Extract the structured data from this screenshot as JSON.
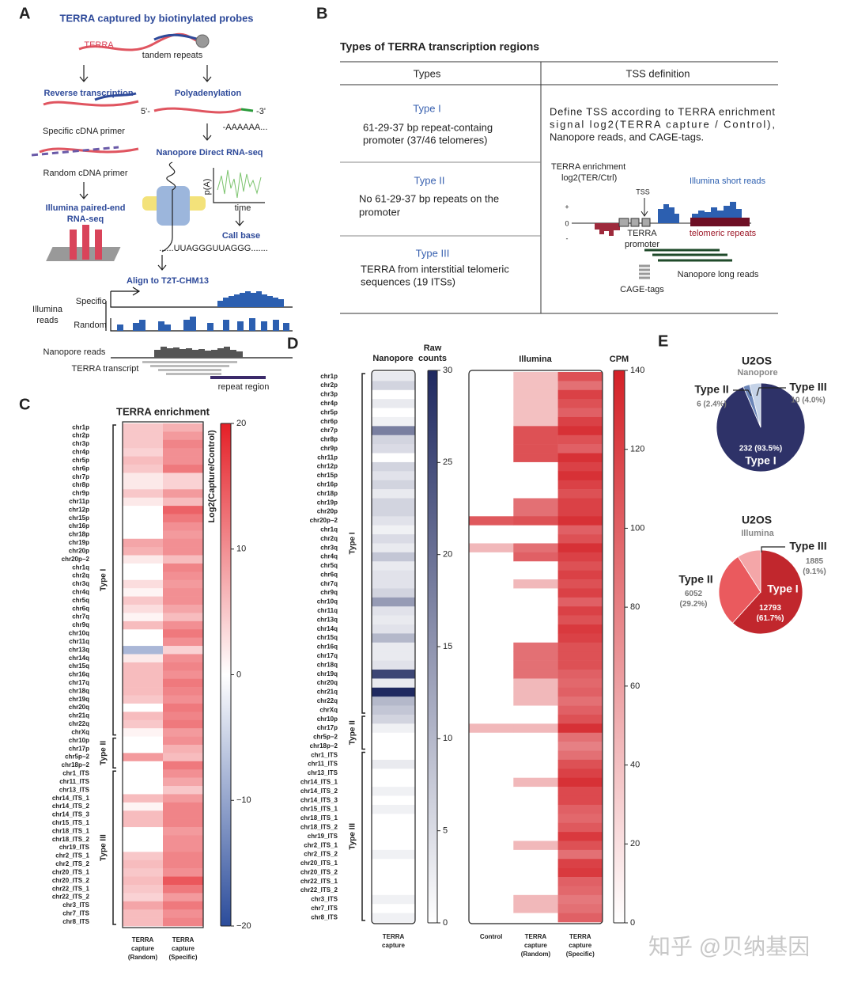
{
  "panel_labels": [
    "A",
    "B",
    "C",
    "D",
    "E"
  ],
  "panel_a": {
    "title": "TERRA captured by biotinylated probes",
    "terra": "TERRA",
    "tandem": "tandem repeats",
    "rt": "Reverse transcription",
    "polya": "Polyadenylation",
    "five": "5'-",
    "three": "-3'",
    "specific_primer": "Specific cDNA primer",
    "polya_tail": "-AAAAAA...",
    "random_primer": "Random cDNA primer",
    "nanopore_seq": "Nanopore Direct RNA-seq",
    "pa": "p(A)",
    "time": "time",
    "illumina_seq": [
      "Illumina paired-end",
      "RNA-seq"
    ],
    "call_base": "Call base",
    "sequence": "......UUAGGGUUAGGG.......",
    "align": "Align to T2T-CHM13",
    "specific": "Specific",
    "illumina_reads": [
      "Illumina",
      "reads"
    ],
    "random": "Random",
    "nanopore_reads": "Nanopore reads",
    "terra_transcript": "TERRA transcript",
    "repeat_region": "repeat region"
  },
  "panel_b": {
    "title": "Types of TERRA transcription regions",
    "table": {
      "header": [
        "Types",
        "TSS definition"
      ],
      "rows": [
        {
          "type": "Type I",
          "description": [
            "61-29-37 bp repeat-containg",
            "promoter (37/46 telomeres)"
          ]
        },
        {
          "type": "Type II",
          "description": [
            "No 61-29-37 bp repeats on the",
            "promoter"
          ]
        },
        {
          "type": "Type III",
          "description": [
            "TERRA from interstitial telomeric",
            "sequences (19 ITSs)"
          ]
        }
      ],
      "tss_definition": [
        "Define TSS according to TERRA enrichment",
        "signal log2(TERRA capture / Control),",
        "Nanopore reads, and CAGE-tags."
      ]
    },
    "diagram": {
      "enrichment": [
        "TERRA enrichment",
        "log2(TER/Ctrl)"
      ],
      "tss": "TSS",
      "short_reads": "Illumina short reads",
      "plus": "+",
      "zero": "0",
      "minus": "-",
      "promoter": [
        "TERRA",
        "promoter"
      ],
      "telomeric": "telomeric repeats",
      "long_reads": "Nanopore long reads",
      "cage": "CAGE-tags"
    }
  },
  "chart_data": [
    {
      "type": "heatmap",
      "title": "TERRA enrichment",
      "colorbar_label": "Log2(Capture/Control)",
      "categories": [
        "chr1p",
        "chr2p",
        "chr3p",
        "chr4p",
        "chr5p",
        "chr6p",
        "chr7p",
        "chr8p",
        "chr9p",
        "chr11p",
        "chr12p",
        "chr15p",
        "chr16p",
        "chr18p",
        "chr19p",
        "chr20p",
        "chr20p−2",
        "chr1q",
        "chr2q",
        "chr3q",
        "chr4q",
        "chr5q",
        "chr6q",
        "chr7q",
        "chr9q",
        "chr10q",
        "chr11q",
        "chr13q",
        "chr14q",
        "chr15q",
        "chr16q",
        "chr17q",
        "chr18q",
        "chr19q",
        "chr20q",
        "chr21q",
        "chr22q",
        "chrXq",
        "chr10p",
        "chr17p",
        "chr5p−2",
        "chr18p−2",
        "chr1_ITS",
        "chr11_ITS",
        "chr13_ITS",
        "chr14_ITS_1",
        "chr14_ITS_2",
        "chr14_ITS_3",
        "chr15_ITS_1",
        "chr18_ITS_1",
        "chr18_ITS_2",
        "chr19_ITS",
        "chr2_ITS_1",
        "chr2_ITS_2",
        "chr20_ITS_1",
        "chr20_ITS_2",
        "chr22_ITS_1",
        "chr22_ITS_2",
        "chr3_ITS",
        "chr7_ITS",
        "chr8_ITS"
      ],
      "groups": [
        "Type I",
        "Type II",
        "Type III"
      ],
      "columns": [
        [
          "TERRA",
          "capture",
          "(Random)"
        ],
        [
          "TERRA",
          "capture",
          "(Specific)"
        ]
      ],
      "series": [
        {
          "values": [
            5,
            5,
            5,
            4,
            6,
            5,
            2,
            2,
            5,
            2,
            0,
            0,
            0,
            0,
            8,
            7,
            2,
            0,
            0,
            3,
            1,
            5,
            3,
            1,
            6,
            0,
            0,
            -8,
            2,
            6,
            6,
            6,
            6,
            5,
            0,
            6,
            5,
            1,
            0,
            0,
            9,
            0,
            0,
            0,
            0,
            6,
            1,
            6,
            6,
            0,
            0,
            0,
            5,
            6,
            5,
            6,
            5,
            4,
            8,
            6,
            6
          ]
        },
        {
          "values": [
            7,
            9,
            11,
            10,
            10,
            12,
            4,
            4,
            9,
            6,
            14,
            12,
            10,
            9,
            10,
            10,
            6,
            11,
            10,
            9,
            10,
            10,
            8,
            6,
            10,
            12,
            10,
            4,
            10,
            11,
            10,
            12,
            11,
            10,
            12,
            11,
            12,
            9,
            10,
            7,
            6,
            12,
            10,
            8,
            5,
            9,
            11,
            11,
            11,
            9,
            10,
            10,
            11,
            11,
            10,
            15,
            12,
            9,
            12,
            10,
            11
          ]
        }
      ],
      "zlim": [
        -20,
        20
      ],
      "zticks": [
        20,
        10,
        0,
        {
          "value": -10,
          "label": "−10"
        },
        {
          "value": -20,
          "label": "−20"
        }
      ],
      "colors": [
        "#2b4c9b",
        "#ffffff",
        "#e41f26"
      ]
    },
    {
      "type": "heatmap",
      "title": "Nanopore",
      "colorbar_label": [
        "Raw",
        "counts"
      ],
      "categories": [
        "chr1p",
        "chr2p",
        "chr3p",
        "chr4p",
        "chr5p",
        "chr6p",
        "chr7p",
        "chr8p",
        "chr9p",
        "chr11p",
        "chr12p",
        "chr15p",
        "chr16p",
        "chr18p",
        "chr19p",
        "chr20p",
        "chr20p−2",
        "chr1q",
        "chr2q",
        "chr3q",
        "chr4q",
        "chr5q",
        "chr6q",
        "chr7q",
        "chr9q",
        "chr10q",
        "chr11q",
        "chr13q",
        "chr14q",
        "chr15q",
        "chr16q",
        "chr17q",
        "chr18q",
        "chr19q",
        "chr20q",
        "chr21q",
        "chr22q",
        "chrXq",
        "chr10p",
        "chr17p",
        "chr5p−2",
        "chr18p−2",
        "chr1_ITS",
        "chr11_ITS",
        "chr13_ITS",
        "chr14_ITS_1",
        "chr14_ITS_2",
        "chr14_ITS_3",
        "chr15_ITS_1",
        "chr18_ITS_1",
        "chr18_ITS_2",
        "chr19_ITS",
        "chr2_ITS_1",
        "chr2_ITS_2",
        "chr20_ITS_1",
        "chr20_ITS_2",
        "chr22_ITS_1",
        "chr22_ITS_2",
        "chr3_ITS",
        "chr7_ITS",
        "chr8_ITS"
      ],
      "groups": [
        "Type I",
        "Type II",
        "Type III"
      ],
      "columns": [
        [
          "TERRA",
          "capture"
        ]
      ],
      "series": [
        {
          "values": [
            3,
            6,
            0,
            3,
            0,
            2,
            18,
            6,
            5,
            0,
            6,
            4,
            6,
            3,
            6,
            6,
            4,
            2,
            5,
            3,
            8,
            3,
            4,
            4,
            6,
            14,
            4,
            3,
            4,
            10,
            3,
            3,
            4,
            26,
            3,
            30,
            10,
            8,
            6,
            2,
            0,
            0,
            0,
            3,
            0,
            0,
            2,
            0,
            2,
            0,
            0,
            0,
            0,
            2,
            0,
            0,
            0,
            0,
            2,
            0,
            2
          ]
        }
      ],
      "zlim": [
        0,
        30
      ],
      "zticks": [
        0,
        5,
        10,
        15,
        20,
        25,
        30
      ],
      "colors": [
        "#ffffff",
        "#1f2960"
      ]
    },
    {
      "type": "heatmap",
      "title": "Illumina",
      "colorbar_label": "CPM",
      "columns": [
        [
          "Control"
        ],
        [
          "TERRA",
          "capture",
          "(Random)"
        ],
        [
          "TERRA",
          "capture",
          "(Specific)"
        ]
      ],
      "series": [
        {
          "values": [
            0,
            0,
            0,
            0,
            0,
            0,
            0,
            0,
            0,
            0,
            0,
            0,
            0,
            0,
            0,
            0,
            105,
            0,
            0,
            45,
            0,
            0,
            0,
            0,
            0,
            0,
            0,
            0,
            0,
            0,
            0,
            0,
            0,
            0,
            0,
            0,
            0,
            0,
            0,
            45,
            0,
            0,
            0,
            0,
            0,
            0,
            0,
            0,
            0,
            0,
            0,
            0,
            0,
            0,
            0,
            0,
            0,
            0,
            0,
            0,
            0
          ]
        },
        {
          "values": [
            40,
            40,
            40,
            40,
            40,
            40,
            110,
            110,
            110,
            110,
            0,
            0,
            0,
            0,
            90,
            90,
            110,
            0,
            0,
            90,
            100,
            0,
            0,
            45,
            0,
            0,
            0,
            0,
            0,
            0,
            90,
            90,
            90,
            90,
            45,
            45,
            45,
            0,
            0,
            45,
            0,
            0,
            0,
            0,
            0,
            45,
            0,
            0,
            0,
            0,
            0,
            0,
            45,
            0,
            0,
            0,
            0,
            0,
            45,
            45,
            0
          ]
        },
        {
          "values": [
            110,
            90,
            120,
            110,
            100,
            120,
            130,
            110,
            100,
            130,
            120,
            130,
            120,
            110,
            120,
            120,
            130,
            100,
            110,
            130,
            120,
            110,
            120,
            110,
            120,
            100,
            120,
            110,
            125,
            120,
            110,
            110,
            110,
            100,
            95,
            100,
            90,
            100,
            110,
            130,
            90,
            80,
            90,
            110,
            120,
            130,
            115,
            115,
            100,
            95,
            105,
            125,
            110,
            90,
            120,
            125,
            100,
            95,
            85,
            90,
            100
          ]
        }
      ],
      "zlim": [
        0,
        140
      ],
      "zticks": [
        0,
        20,
        40,
        60,
        80,
        100,
        120,
        140
      ],
      "colors": [
        "#ffffff",
        "#d42127"
      ]
    },
    {
      "type": "pie",
      "title": "U2OS",
      "subtitle": "Nanopore",
      "categories": [
        "Type I",
        "Type II",
        "Type III"
      ],
      "values": [
        232,
        6,
        10
      ],
      "value_labels": [
        "232 (93.5%)",
        "6 (2.4%)",
        "10 (4.0%)"
      ],
      "colors": [
        "#2e3268",
        "#6b85b8",
        "#c5d3e8"
      ]
    },
    {
      "type": "pie",
      "title": "U2OS",
      "subtitle": "Illumina",
      "categories": [
        "Type I",
        "Type II",
        "Type III"
      ],
      "values": [
        12793,
        6052,
        1885
      ],
      "value_labels": [
        "12793 (61.7%)",
        "6052 (29.2%)",
        "1885 (9.1%)"
      ],
      "colors": [
        "#c1272d",
        "#ea5a5e",
        "#f4a6a8"
      ]
    }
  ],
  "watermark": "知乎 @贝纳基因"
}
